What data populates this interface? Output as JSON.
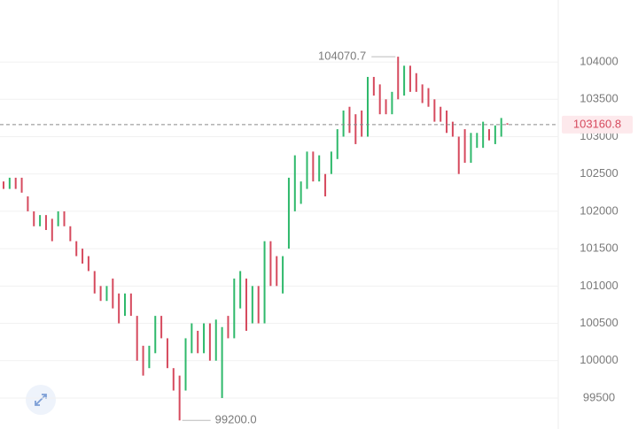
{
  "chart_data": {
    "type": "candlestick",
    "ylim": [
      99085,
      104830
    ],
    "yticks": [
      99500,
      100000,
      100500,
      101000,
      101500,
      102000,
      102500,
      103000,
      103500,
      104000
    ],
    "grid": true,
    "up_color": "#2fb96b",
    "down_color": "#d64a5e",
    "open": [
      102400,
      102300,
      102450,
      102450,
      102200,
      102000,
      101800,
      101950,
      101900,
      101800,
      102000,
      101800,
      101600,
      101500,
      101400,
      101200,
      101000,
      100800,
      101100,
      100900,
      100600,
      100900,
      100600,
      100200,
      99900,
      100100,
      100600,
      100300,
      99900,
      99800,
      99600,
      100100,
      100400,
      100100,
      100500,
      100000,
      99500,
      100600,
      100300,
      100700,
      101100,
      100500,
      101000,
      100500,
      101600,
      101400,
      100900,
      101500,
      102000,
      102100,
      102300,
      102800,
      102400,
      102500,
      102500,
      102700,
      103000,
      103400,
      103300,
      103350,
      103000,
      103800,
      103700,
      103500,
      103300,
      104070.7,
      103550,
      103950,
      103850,
      103700,
      103650,
      103500,
      103400,
      103350,
      103200,
      103000,
      103100,
      102650,
      102850,
      102850,
      103100,
      102900,
      103000,
      103180
    ],
    "close": [
      102300,
      102450,
      102300,
      102250,
      102000,
      101800,
      101950,
      101750,
      101600,
      102000,
      101800,
      101600,
      101400,
      101300,
      101200,
      100900,
      100800,
      101000,
      100700,
      100500,
      100900,
      100600,
      100000,
      99800,
      100200,
      100600,
      100300,
      99900,
      99600,
      99200,
      100300,
      100500,
      100100,
      100500,
      100000,
      100550,
      100450,
      100300,
      101100,
      101200,
      100400,
      101000,
      100500,
      101600,
      101000,
      101000,
      101400,
      102450,
      102750,
      102400,
      102800,
      102400,
      102750,
      102200,
      102800,
      103100,
      103350,
      103050,
      102900,
      103000,
      103800,
      103550,
      103300,
      103300,
      103600,
      103500,
      103950,
      103600,
      103600,
      103450,
      103400,
      103200,
      103200,
      103050,
      103000,
      102500,
      102650,
      103050,
      103050,
      103200,
      102950,
      103150,
      103250,
      103160.8
    ],
    "high_label": 104070.7,
    "low_label": {
      "value": 99200,
      "label": "99200.0"
    },
    "last_price": 103160.8
  }
}
